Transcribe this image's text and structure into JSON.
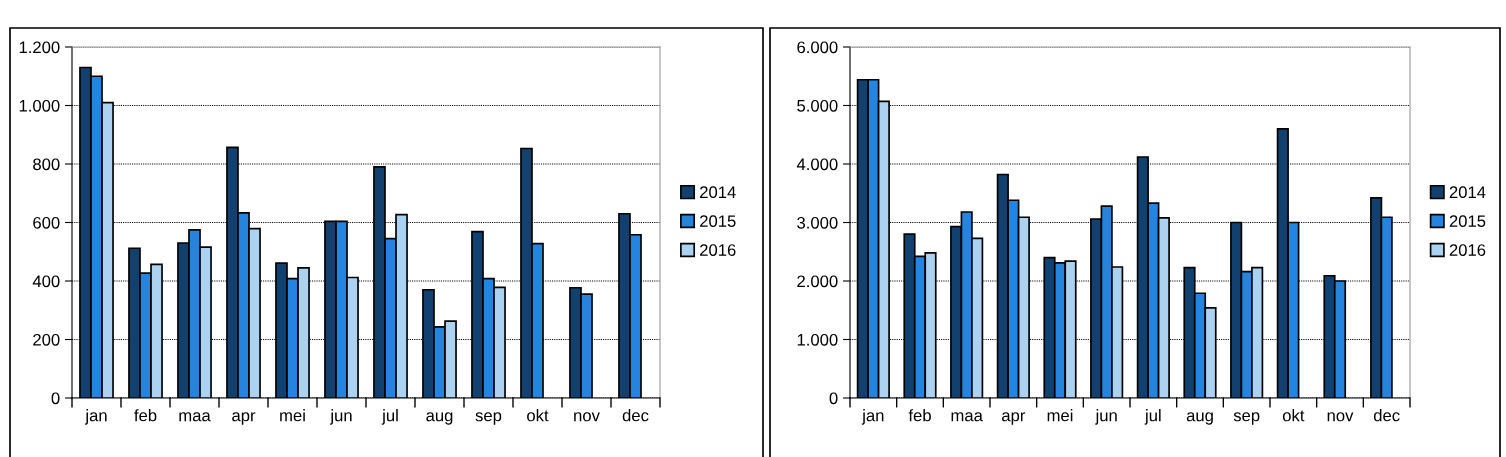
{
  "chart_data": [
    {
      "type": "bar",
      "categories": [
        "jan",
        "feb",
        "maa",
        "apr",
        "mei",
        "jun",
        "jul",
        "aug",
        "sep",
        "okt",
        "nov",
        "dec"
      ],
      "series": [
        {
          "name": "2014",
          "color": "#12406f",
          "values": [
            1130,
            512,
            530,
            857,
            461,
            604,
            790,
            370,
            569,
            853,
            377,
            630
          ]
        },
        {
          "name": "2015",
          "color": "#2585de",
          "values": [
            1100,
            427,
            575,
            633,
            408,
            604,
            545,
            243,
            408,
            528,
            355,
            558
          ]
        },
        {
          "name": "2016",
          "color": "#acd2f2",
          "values": [
            1010,
            457,
            516,
            579,
            445,
            412,
            627,
            263,
            378,
            null,
            null,
            null
          ]
        }
      ],
      "ylim": [
        0,
        1200
      ],
      "yticks": [
        0,
        200,
        400,
        600,
        800,
        {
          "value": 1000,
          "label": "1.000"
        },
        {
          "value": 1200,
          "label": "1.200"
        }
      ],
      "grid": "y",
      "legend": "right"
    },
    {
      "type": "bar",
      "categories": [
        "jan",
        "feb",
        "maa",
        "apr",
        "mei",
        "jun",
        "jul",
        "aug",
        "sep",
        "okt",
        "nov",
        "dec"
      ],
      "series": [
        {
          "name": "2014",
          "color": "#12406f",
          "values": [
            5440,
            2800,
            2930,
            3820,
            2400,
            3060,
            4120,
            2230,
            3000,
            4600,
            2090,
            3420
          ]
        },
        {
          "name": "2015",
          "color": "#2585de",
          "values": [
            5440,
            2420,
            3180,
            3380,
            2310,
            3280,
            3330,
            1790,
            2160,
            3000,
            2000,
            3090
          ]
        },
        {
          "name": "2016",
          "color": "#acd2f2",
          "values": [
            5070,
            2480,
            2730,
            3090,
            2340,
            2240,
            3080,
            1540,
            2230,
            null,
            null,
            null
          ]
        }
      ],
      "ylim": [
        0,
        6000
      ],
      "yticks": [
        0,
        {
          "value": 1000,
          "label": "1.000"
        },
        {
          "value": 2000,
          "label": "2.000"
        },
        {
          "value": 3000,
          "label": "3.000"
        },
        {
          "value": 4000,
          "label": "4.000"
        },
        {
          "value": 5000,
          "label": "5.000"
        },
        {
          "value": 6000,
          "label": "6.000"
        }
      ],
      "grid": "y",
      "legend": "right"
    }
  ]
}
